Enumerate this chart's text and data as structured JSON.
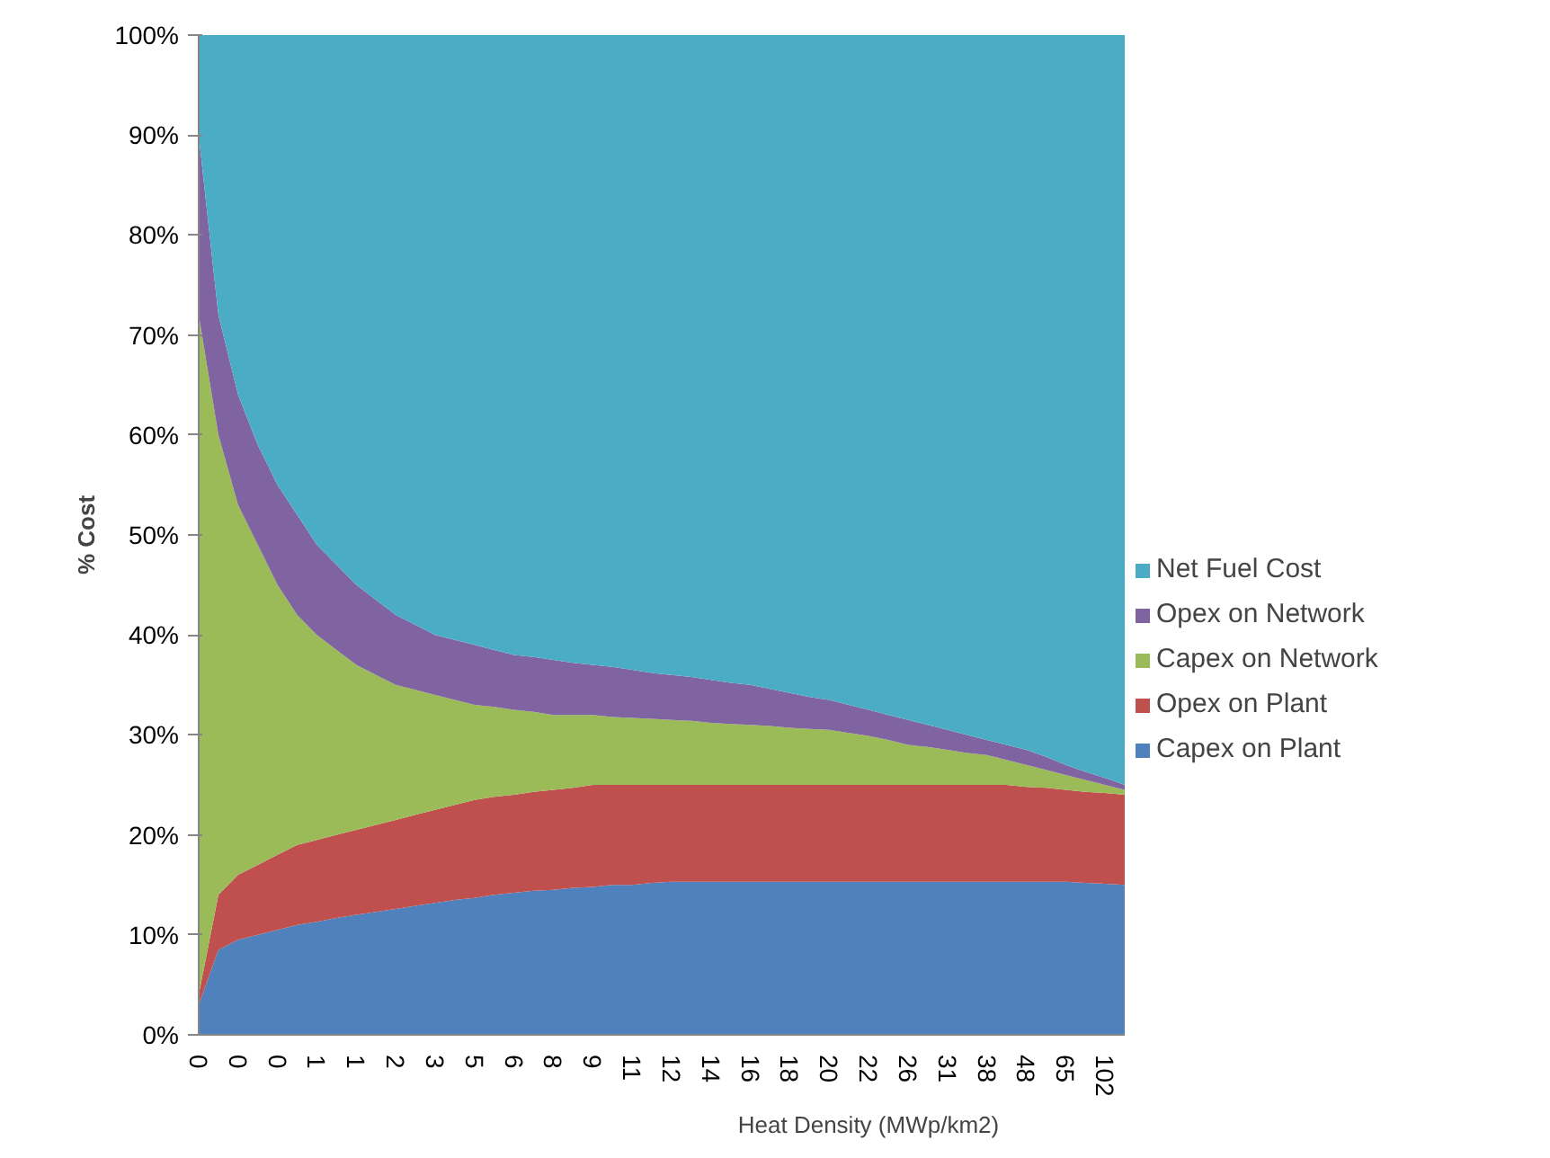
{
  "chart_data": {
    "type": "area",
    "stacked": true,
    "xlabel": "Heat Density (MWp/km2)",
    "ylabel": "% Cost",
    "categories": [
      "0",
      null,
      "0",
      null,
      "0",
      null,
      "1",
      null,
      "1",
      null,
      "2",
      null,
      "3",
      null,
      "5",
      null,
      "6",
      null,
      "8",
      null,
      "9",
      null,
      "11",
      null,
      "12",
      null,
      "14",
      null,
      "16",
      null,
      "18",
      null,
      "20",
      null,
      "22",
      null,
      "26",
      null,
      "31",
      null,
      "38",
      null,
      "48",
      null,
      "65",
      null,
      "102",
      null
    ],
    "ylim": [
      0,
      100
    ],
    "yticks": [
      {
        "value": 0,
        "label": "0%"
      },
      {
        "value": 10,
        "label": "10%"
      },
      {
        "value": 20,
        "label": "20%"
      },
      {
        "value": 30,
        "label": "30%"
      },
      {
        "value": 40,
        "label": "40%"
      },
      {
        "value": 50,
        "label": "50%"
      },
      {
        "value": 60,
        "label": "60%"
      },
      {
        "value": 70,
        "label": "70%"
      },
      {
        "value": 80,
        "label": "80%"
      },
      {
        "value": 90,
        "label": "90%"
      },
      {
        "value": 100,
        "label": "100%"
      }
    ],
    "grid": false,
    "legend": "right",
    "series": [
      {
        "name": "Capex on Plant",
        "color": "#4f81bd",
        "values": [
          3,
          8.5,
          9.5,
          10,
          10.5,
          11,
          11.3,
          11.7,
          12,
          12.3,
          12.6,
          12.9,
          13.2,
          13.5,
          13.7,
          14,
          14.2,
          14.4,
          14.5,
          14.7,
          14.8,
          15,
          15,
          15.2,
          15.3,
          15.3,
          15.3,
          15.3,
          15.3,
          15.3,
          15.3,
          15.3,
          15.3,
          15.3,
          15.3,
          15.3,
          15.3,
          15.3,
          15.3,
          15.3,
          15.3,
          15.3,
          15.3,
          15.3,
          15.3,
          15.2,
          15.1,
          15
        ]
      },
      {
        "name": "Opex on Plant",
        "color": "#c0504d",
        "values": [
          1,
          5.5,
          6.5,
          7,
          7.5,
          8,
          8.2,
          8.3,
          8.5,
          8.7,
          8.9,
          9.1,
          9.3,
          9.5,
          9.8,
          9.8,
          9.8,
          9.9,
          10,
          10,
          10.2,
          10,
          10,
          9.8,
          9.7,
          9.7,
          9.7,
          9.7,
          9.7,
          9.7,
          9.7,
          9.7,
          9.7,
          9.7,
          9.7,
          9.7,
          9.7,
          9.7,
          9.7,
          9.7,
          9.7,
          9.7,
          9.5,
          9.4,
          9.2,
          9.1,
          9.1,
          9
        ]
      },
      {
        "name": "Capex on Network",
        "color": "#9bbb59",
        "values": [
          68,
          46,
          37,
          32,
          27,
          23,
          20.5,
          18.5,
          16.5,
          15,
          13.5,
          12.5,
          11.5,
          10.5,
          9.5,
          9,
          8.5,
          8,
          7.5,
          7.3,
          7,
          6.8,
          6.7,
          6.6,
          6.5,
          6.4,
          6.2,
          6.1,
          6,
          5.9,
          5.7,
          5.6,
          5.5,
          5.2,
          4.9,
          4.5,
          4,
          3.8,
          3.5,
          3.2,
          3,
          2.5,
          2.2,
          1.8,
          1.5,
          1.2,
          0.8,
          0.5
        ]
      },
      {
        "name": "Opex on Network",
        "color": "#8064a2",
        "values": [
          18,
          12,
          11,
          10,
          10,
          10,
          9,
          8.5,
          8,
          7.5,
          7,
          6.5,
          6,
          6,
          6,
          5.7,
          5.5,
          5.5,
          5.5,
          5.2,
          5,
          5,
          4.8,
          4.6,
          4.5,
          4.4,
          4.3,
          4.1,
          4,
          3.7,
          3.5,
          3.2,
          3,
          2.8,
          2.6,
          2.5,
          2.5,
          2.2,
          2,
          1.8,
          1.5,
          1.5,
          1.5,
          1.3,
          1,
          0.8,
          0.7,
          0.5
        ]
      },
      {
        "name": "Net Fuel Cost",
        "color": "#4bacc6",
        "values": [
          10,
          28,
          36,
          41,
          45,
          48,
          51,
          53,
          55,
          56.5,
          58,
          59,
          60,
          60.5,
          61,
          61.5,
          62,
          62.2,
          62.5,
          62.8,
          63,
          63.2,
          63.5,
          63.8,
          64,
          64.2,
          64.5,
          64.8,
          65,
          65.4,
          65.8,
          66.2,
          66.5,
          67,
          67.5,
          68,
          68.5,
          69,
          69.5,
          70,
          70.5,
          71,
          71.5,
          72.2,
          73,
          73.7,
          74.3,
          75
        ]
      }
    ]
  }
}
